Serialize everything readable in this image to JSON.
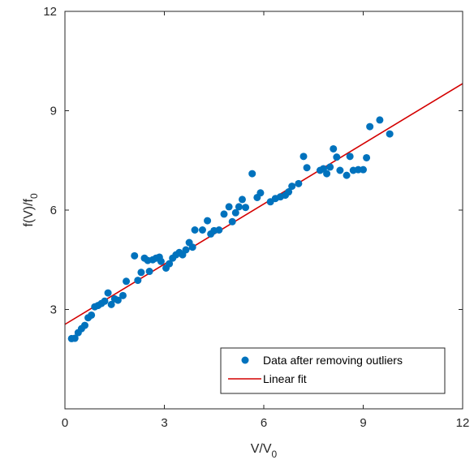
{
  "chart_data": {
    "type": "scatter",
    "xlabel_main": "V/V",
    "xlabel_sub": "0",
    "ylabel_main": "f(V)/f",
    "ylabel_sub": "0",
    "xlim": [
      0,
      12
    ],
    "ylim": [
      0,
      12
    ],
    "xticks": [
      0,
      3,
      6,
      9,
      12
    ],
    "yticks": [
      3,
      6,
      9,
      12
    ],
    "grid": false,
    "legend_position": "bottom-right",
    "series": [
      {
        "name": "Data after removing outliers",
        "kind": "scatter",
        "color": "#0072BD",
        "points": [
          [
            0.2,
            2.12
          ],
          [
            0.3,
            2.13
          ],
          [
            0.4,
            2.3
          ],
          [
            0.5,
            2.42
          ],
          [
            0.6,
            2.52
          ],
          [
            0.7,
            2.75
          ],
          [
            0.8,
            2.83
          ],
          [
            0.9,
            3.08
          ],
          [
            1.0,
            3.12
          ],
          [
            1.1,
            3.18
          ],
          [
            1.2,
            3.25
          ],
          [
            1.3,
            3.5
          ],
          [
            1.4,
            3.15
          ],
          [
            1.5,
            3.32
          ],
          [
            1.6,
            3.28
          ],
          [
            1.75,
            3.42
          ],
          [
            1.85,
            3.85
          ],
          [
            2.1,
            4.62
          ],
          [
            2.2,
            3.88
          ],
          [
            2.3,
            4.12
          ],
          [
            2.4,
            4.55
          ],
          [
            2.5,
            4.48
          ],
          [
            2.55,
            4.15
          ],
          [
            2.65,
            4.5
          ],
          [
            2.75,
            4.55
          ],
          [
            2.85,
            4.58
          ],
          [
            2.9,
            4.45
          ],
          [
            3.05,
            4.25
          ],
          [
            3.15,
            4.38
          ],
          [
            3.25,
            4.55
          ],
          [
            3.35,
            4.65
          ],
          [
            3.45,
            4.72
          ],
          [
            3.55,
            4.65
          ],
          [
            3.65,
            4.8
          ],
          [
            3.75,
            5.02
          ],
          [
            3.85,
            4.88
          ],
          [
            3.92,
            5.4
          ],
          [
            4.15,
            5.4
          ],
          [
            4.3,
            5.68
          ],
          [
            4.4,
            5.28
          ],
          [
            4.5,
            5.38
          ],
          [
            4.65,
            5.4
          ],
          [
            4.8,
            5.88
          ],
          [
            4.95,
            6.1
          ],
          [
            5.05,
            5.65
          ],
          [
            5.15,
            5.92
          ],
          [
            5.25,
            6.1
          ],
          [
            5.35,
            6.32
          ],
          [
            5.45,
            6.08
          ],
          [
            5.65,
            7.1
          ],
          [
            5.8,
            6.38
          ],
          [
            5.9,
            6.52
          ],
          [
            6.2,
            6.25
          ],
          [
            6.35,
            6.35
          ],
          [
            6.5,
            6.4
          ],
          [
            6.65,
            6.45
          ],
          [
            6.75,
            6.55
          ],
          [
            6.85,
            6.72
          ],
          [
            7.05,
            6.8
          ],
          [
            7.2,
            7.62
          ],
          [
            7.3,
            7.28
          ],
          [
            7.7,
            7.2
          ],
          [
            7.8,
            7.25
          ],
          [
            7.9,
            7.1
          ],
          [
            8.0,
            7.3
          ],
          [
            8.1,
            7.85
          ],
          [
            8.2,
            7.6
          ],
          [
            8.3,
            7.2
          ],
          [
            8.5,
            7.05
          ],
          [
            8.6,
            7.62
          ],
          [
            8.7,
            7.2
          ],
          [
            8.85,
            7.22
          ],
          [
            9.0,
            7.22
          ],
          [
            9.1,
            7.58
          ],
          [
            9.2,
            8.52
          ],
          [
            9.5,
            8.72
          ],
          [
            9.8,
            8.3
          ]
        ]
      },
      {
        "name": "Linear fit",
        "kind": "line",
        "color": "#D40000",
        "points": [
          [
            0,
            2.55
          ],
          [
            12,
            9.82
          ]
        ]
      }
    ]
  }
}
